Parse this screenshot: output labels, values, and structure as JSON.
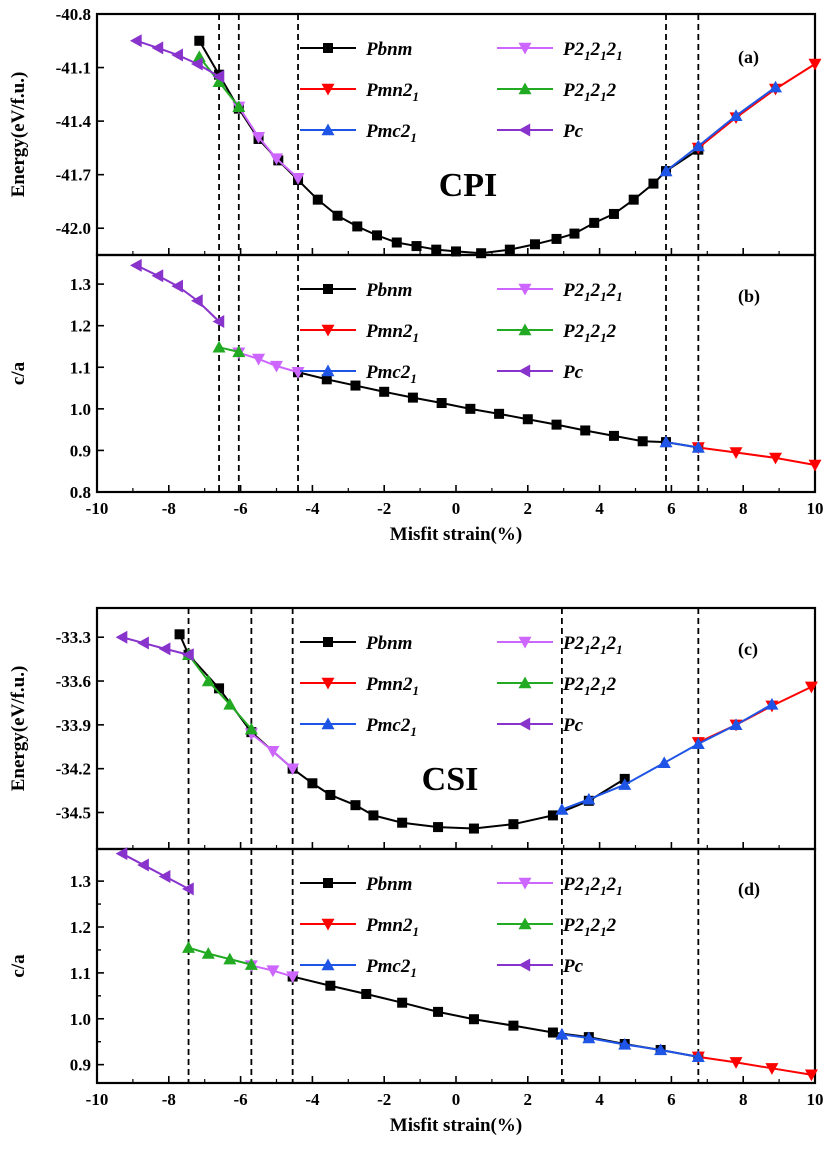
{
  "chart_data": [
    {
      "id": "a",
      "type": "line",
      "panel_label": "(a)",
      "material_label": "CPI",
      "ylabel": "Energy(eV/f.u.)",
      "xlabel": "",
      "xlim": [
        -10,
        10
      ],
      "ylim": [
        -42.15,
        -40.8
      ],
      "yticks": [
        "-40.8",
        "-41.1",
        "-41.4",
        "-41.7",
        "-42.0"
      ],
      "ytick_values": [
        -40.8,
        -41.1,
        -41.4,
        -41.7,
        -42.0
      ],
      "xticks": [],
      "vlines": [
        -6.6,
        -6.05,
        -4.4,
        5.85,
        6.75
      ],
      "legend": [
        "Pbnm",
        "Pmn21",
        "Pmc21",
        "P212121",
        "P21212",
        "Pc"
      ],
      "series": [
        {
          "name": "Pbnm",
          "color": "#000000",
          "marker": "square",
          "x": [
            -7.15,
            -6.6,
            -6.05,
            -5.5,
            -4.95,
            -4.4,
            -3.85,
            -3.3,
            -2.75,
            -2.2,
            -1.65,
            -1.1,
            -0.55,
            0.0,
            0.7,
            1.5,
            2.2,
            2.8,
            3.3,
            3.85,
            4.4,
            4.95,
            5.5,
            5.85,
            6.75
          ],
          "y": [
            -40.95,
            -41.14,
            -41.33,
            -41.5,
            -41.62,
            -41.73,
            -41.84,
            -41.93,
            -41.99,
            -42.04,
            -42.08,
            -42.1,
            -42.12,
            -42.13,
            -42.14,
            -42.12,
            -42.09,
            -42.06,
            -42.03,
            -41.97,
            -41.92,
            -41.84,
            -41.75,
            -41.68,
            -41.56
          ]
        },
        {
          "name": "Pmn21",
          "color": "#ff0000",
          "marker": "triangle-down",
          "x": [
            6.75,
            7.8,
            8.9,
            10.0
          ],
          "y": [
            -41.55,
            -41.38,
            -41.22,
            -41.08
          ]
        },
        {
          "name": "Pmc21",
          "color": "#1f55e6",
          "marker": "triangle-up",
          "x": [
            5.85,
            6.75,
            7.8,
            8.9
          ],
          "y": [
            -41.68,
            -41.54,
            -41.37,
            -41.21
          ]
        },
        {
          "name": "P212121",
          "color": "#cc66ff",
          "marker": "triangle-down",
          "x": [
            -6.05,
            -5.5,
            -5.0,
            -4.4
          ],
          "y": [
            -41.32,
            -41.49,
            -41.61,
            -41.72
          ]
        },
        {
          "name": "P21212",
          "color": "#22aa22",
          "marker": "triangle-up",
          "x": [
            -7.15,
            -6.6,
            -6.05
          ],
          "y": [
            -41.04,
            -41.18,
            -41.32
          ]
        },
        {
          "name": "Pc",
          "color": "#8833cc",
          "marker": "triangle-left",
          "x": [
            -8.9,
            -8.3,
            -7.75,
            -7.2,
            -6.6
          ],
          "y": [
            -40.95,
            -40.99,
            -41.03,
            -41.08,
            -41.15
          ]
        }
      ]
    },
    {
      "id": "b",
      "type": "line",
      "panel_label": "(b)",
      "material_label": "",
      "ylabel": "c/a",
      "xlabel": "Misfit strain(%)",
      "xlim": [
        -10,
        10
      ],
      "ylim": [
        0.8,
        1.37
      ],
      "yticks": [
        "0.8",
        "0.9",
        "1.0",
        "1.1",
        "1.2",
        "1.3"
      ],
      "ytick_values": [
        0.8,
        0.9,
        1.0,
        1.1,
        1.2,
        1.3
      ],
      "xticks": [
        "-10",
        "-8",
        "-6",
        "-4",
        "-2",
        "0",
        "2",
        "4",
        "6",
        "8",
        "10"
      ],
      "xtick_values": [
        -10,
        -8,
        -6,
        -4,
        -2,
        0,
        2,
        4,
        6,
        8,
        10
      ],
      "vlines": [
        -6.6,
        -6.05,
        -4.4,
        5.85,
        6.75
      ],
      "legend": [
        "Pbnm",
        "Pmn21",
        "Pmc21",
        "P212121",
        "P21212",
        "Pc"
      ],
      "series": [
        {
          "name": "Pbnm",
          "color": "#000000",
          "marker": "square",
          "x": [
            -4.4,
            -3.6,
            -2.8,
            -2.0,
            -1.2,
            -0.4,
            0.4,
            1.2,
            2.0,
            2.8,
            3.6,
            4.4,
            5.2,
            5.85,
            6.75
          ],
          "y": [
            1.088,
            1.071,
            1.056,
            1.041,
            1.027,
            1.014,
            1.0,
            0.988,
            0.975,
            0.962,
            0.948,
            0.935,
            0.922,
            0.92,
            0.907
          ]
        },
        {
          "name": "Pmn21",
          "color": "#ff0000",
          "marker": "triangle-down",
          "x": [
            6.75,
            7.8,
            8.9,
            10.0
          ],
          "y": [
            0.907,
            0.895,
            0.882,
            0.865
          ]
        },
        {
          "name": "Pmc21",
          "color": "#1f55e6",
          "marker": "triangle-up",
          "x": [
            5.85,
            6.75
          ],
          "y": [
            0.92,
            0.907
          ]
        },
        {
          "name": "P212121",
          "color": "#cc66ff",
          "marker": "triangle-down",
          "x": [
            -6.05,
            -5.5,
            -5.0,
            -4.4
          ],
          "y": [
            1.135,
            1.12,
            1.103,
            1.088
          ]
        },
        {
          "name": "P21212",
          "color": "#22aa22",
          "marker": "triangle-up",
          "x": [
            -6.6,
            -6.05
          ],
          "y": [
            1.148,
            1.137
          ]
        },
        {
          "name": "Pc",
          "color": "#8833cc",
          "marker": "triangle-left",
          "x": [
            -8.9,
            -8.3,
            -7.75,
            -7.2,
            -6.6
          ],
          "y": [
            1.345,
            1.32,
            1.295,
            1.26,
            1.21
          ]
        }
      ]
    },
    {
      "id": "c",
      "type": "line",
      "panel_label": "(c)",
      "material_label": "CSI",
      "ylabel": "Energy(eV/f.u.)",
      "xlabel": "",
      "xlim": [
        -10,
        10
      ],
      "ylim": [
        -34.75,
        -33.1
      ],
      "yticks": [
        "-33.3",
        "-33.6",
        "-33.9",
        "-34.2",
        "-34.5"
      ],
      "ytick_values": [
        -33.3,
        -33.6,
        -33.9,
        -34.2,
        -34.5
      ],
      "xticks": [],
      "vlines": [
        -7.45,
        -5.7,
        -4.55,
        2.95,
        6.75
      ],
      "legend": [
        "Pbnm",
        "Pmn21",
        "Pmc21",
        "P212121",
        "P21212",
        "Pc"
      ],
      "series": [
        {
          "name": "Pbnm",
          "color": "#000000",
          "marker": "square",
          "x": [
            -7.7,
            -7.45,
            -6.6,
            -5.7,
            -4.55,
            -4.0,
            -3.5,
            -2.8,
            -2.3,
            -1.5,
            -0.5,
            0.5,
            1.6,
            2.7,
            3.7,
            4.7
          ],
          "y": [
            -33.28,
            -33.42,
            -33.65,
            -33.95,
            -34.2,
            -34.3,
            -34.38,
            -34.45,
            -34.52,
            -34.57,
            -34.6,
            -34.61,
            -34.58,
            -34.52,
            -34.42,
            -34.27
          ]
        },
        {
          "name": "Pmn21",
          "color": "#ff0000",
          "marker": "triangle-down",
          "x": [
            6.75,
            7.8,
            8.8,
            9.9
          ],
          "y": [
            -34.02,
            -33.9,
            -33.77,
            -33.64
          ]
        },
        {
          "name": "Pmc21",
          "color": "#1f55e6",
          "marker": "triangle-up",
          "x": [
            2.95,
            3.7,
            4.7,
            5.8,
            6.75,
            7.8,
            8.8
          ],
          "y": [
            -34.48,
            -34.41,
            -34.31,
            -34.16,
            -34.03,
            -33.9,
            -33.76
          ]
        },
        {
          "name": "P212121",
          "color": "#cc66ff",
          "marker": "triangle-down",
          "x": [
            -5.7,
            -5.1,
            -4.55
          ],
          "y": [
            -33.96,
            -34.08,
            -34.2
          ]
        },
        {
          "name": "P21212",
          "color": "#22aa22",
          "marker": "triangle-up",
          "x": [
            -7.45,
            -6.9,
            -6.3,
            -5.7
          ],
          "y": [
            -33.42,
            -33.6,
            -33.76,
            -33.93
          ]
        },
        {
          "name": "Pc",
          "color": "#8833cc",
          "marker": "triangle-left",
          "x": [
            -9.3,
            -8.7,
            -8.1,
            -7.45
          ],
          "y": [
            -33.3,
            -33.34,
            -33.38,
            -33.42
          ]
        }
      ]
    },
    {
      "id": "d",
      "type": "line",
      "panel_label": "(d)",
      "material_label": "",
      "ylabel": "c/a",
      "xlabel": "Misfit strain(%)",
      "xlim": [
        -10,
        10
      ],
      "ylim": [
        0.86,
        1.37
      ],
      "yticks": [
        "0.9",
        "1.0",
        "1.1",
        "1.2",
        "1.3"
      ],
      "ytick_values": [
        0.9,
        1.0,
        1.1,
        1.2,
        1.3
      ],
      "minor_yticks": [
        0.95,
        1.05,
        1.15,
        1.25
      ],
      "xticks": [
        "-10",
        "-8",
        "-6",
        "-4",
        "-2",
        "0",
        "2",
        "4",
        "6",
        "8",
        "10"
      ],
      "xtick_values": [
        -10,
        -8,
        -6,
        -4,
        -2,
        0,
        2,
        4,
        6,
        8,
        10
      ],
      "vlines": [
        -7.45,
        -5.7,
        -4.55,
        2.95,
        6.75
      ],
      "legend": [
        "Pbnm",
        "Pmn21",
        "Pmc21",
        "P212121",
        "P21212",
        "Pc"
      ],
      "series": [
        {
          "name": "Pbnm",
          "color": "#000000",
          "marker": "square",
          "x": [
            -4.55,
            -3.5,
            -2.5,
            -1.5,
            -0.5,
            0.5,
            1.6,
            2.7,
            3.7,
            4.7,
            5.7,
            6.75
          ],
          "y": [
            1.092,
            1.072,
            1.054,
            1.035,
            1.015,
            0.999,
            0.985,
            0.97,
            0.96,
            0.945,
            0.932,
            0.917
          ]
        },
        {
          "name": "Pmn21",
          "color": "#ff0000",
          "marker": "triangle-down",
          "x": [
            6.75,
            7.8,
            8.8,
            9.9
          ],
          "y": [
            0.917,
            0.905,
            0.892,
            0.878
          ]
        },
        {
          "name": "Pmc21",
          "color": "#1f55e6",
          "marker": "triangle-up",
          "x": [
            2.95,
            3.7,
            4.7,
            5.7,
            6.75
          ],
          "y": [
            0.966,
            0.958,
            0.944,
            0.932,
            0.917
          ]
        },
        {
          "name": "P212121",
          "color": "#cc66ff",
          "marker": "triangle-down",
          "x": [
            -5.7,
            -5.1,
            -4.55
          ],
          "y": [
            1.116,
            1.105,
            1.092
          ]
        },
        {
          "name": "P21212",
          "color": "#22aa22",
          "marker": "triangle-up",
          "x": [
            -7.45,
            -6.9,
            -6.3,
            -5.7
          ],
          "y": [
            1.155,
            1.142,
            1.13,
            1.118
          ]
        },
        {
          "name": "Pc",
          "color": "#8833cc",
          "marker": "triangle-left",
          "x": [
            -9.3,
            -8.7,
            -8.1,
            -7.45
          ],
          "y": [
            1.36,
            1.335,
            1.31,
            1.283
          ]
        }
      ]
    }
  ]
}
